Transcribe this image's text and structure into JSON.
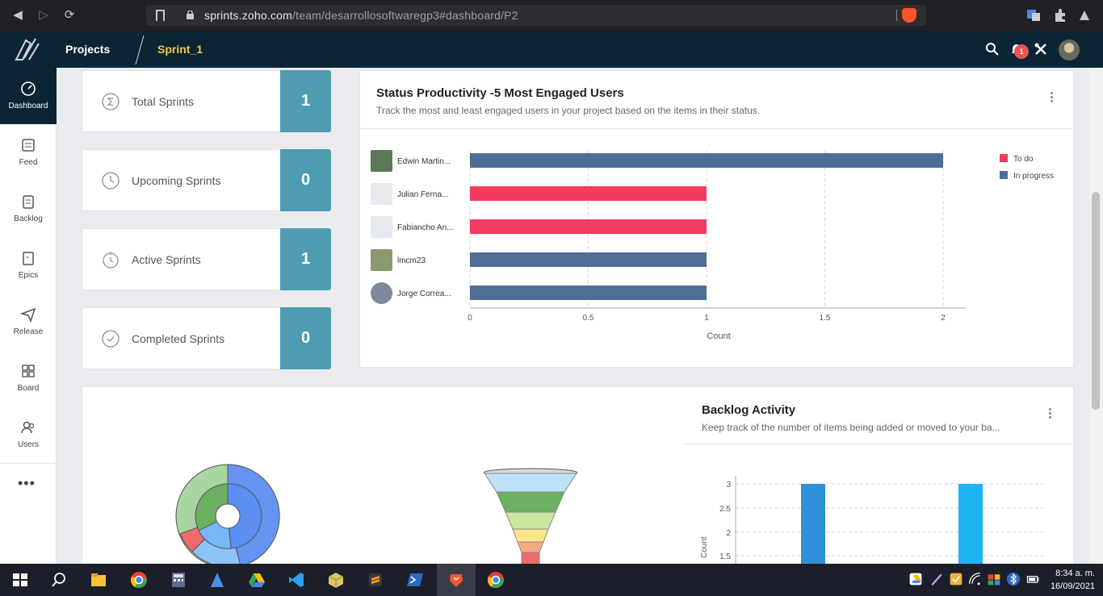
{
  "browser": {
    "url_host": "sprints.zoho.com",
    "url_path": "/team/desarrollosoftwaregp3#dashboard/P2"
  },
  "header": {
    "projects_label": "Projects",
    "sprint_label": "Sprint_1",
    "notification_count": "1"
  },
  "sidebar": {
    "items": [
      {
        "label": "Dashboard",
        "icon": "dashboard-icon"
      },
      {
        "label": "Feed",
        "icon": "feed-icon"
      },
      {
        "label": "Backlog",
        "icon": "backlog-icon"
      },
      {
        "label": "Epics",
        "icon": "epics-icon"
      },
      {
        "label": "Release",
        "icon": "release-icon"
      },
      {
        "label": "Board",
        "icon": "board-icon"
      },
      {
        "label": "Users",
        "icon": "users-icon"
      }
    ],
    "more_label": "•••"
  },
  "stats": [
    {
      "label": "Total Sprints",
      "value": "1",
      "icon": "sigma-icon"
    },
    {
      "label": "Upcoming Sprints",
      "value": "0",
      "icon": "clock-icon"
    },
    {
      "label": "Active Sprints",
      "value": "1",
      "icon": "stopwatch-icon"
    },
    {
      "label": "Completed Sprints",
      "value": "0",
      "icon": "check-circle-icon"
    }
  ],
  "status_panel": {
    "title": "Status Productivity -5 Most Engaged Users",
    "subtitle": "Track the most and least engaged users in your project based on the items in their status."
  },
  "chart_data": [
    {
      "type": "bar",
      "orientation": "horizontal",
      "categories": [
        "Edwin Martin...",
        "Julian Ferna...",
        "Fabiancho An...",
        "lmcm23",
        "Jorge Correa..."
      ],
      "series": [
        {
          "name": "To do",
          "color": "#f23b5f",
          "values": [
            0,
            1,
            1,
            0,
            0
          ]
        },
        {
          "name": "In progress",
          "color": "#4e6e96",
          "values": [
            2,
            0,
            0,
            1,
            1
          ]
        }
      ],
      "xlabel": "Count",
      "xlim": [
        0,
        2
      ],
      "xticks": [
        "0",
        "0.5",
        "1",
        "1.5",
        "2"
      ],
      "grid": true,
      "legend": "top-right"
    },
    {
      "type": "bar",
      "title": "Backlog Activity",
      "ylabel": "Count",
      "yticks": [
        "3",
        "2.5",
        "2",
        "1.5"
      ],
      "series": [
        {
          "values": [
            3
          ],
          "color": "#2e90d8"
        },
        {
          "values": [
            3
          ],
          "color": "#1cb4f4"
        }
      ],
      "grid": true
    }
  ],
  "backlog_panel": {
    "title": "Backlog Activity",
    "subtitle": "Keep track of the number of items being added or moved to your ba..."
  },
  "taskbar": {
    "time": "8:34 a. m.",
    "date": "16/09/2021"
  }
}
